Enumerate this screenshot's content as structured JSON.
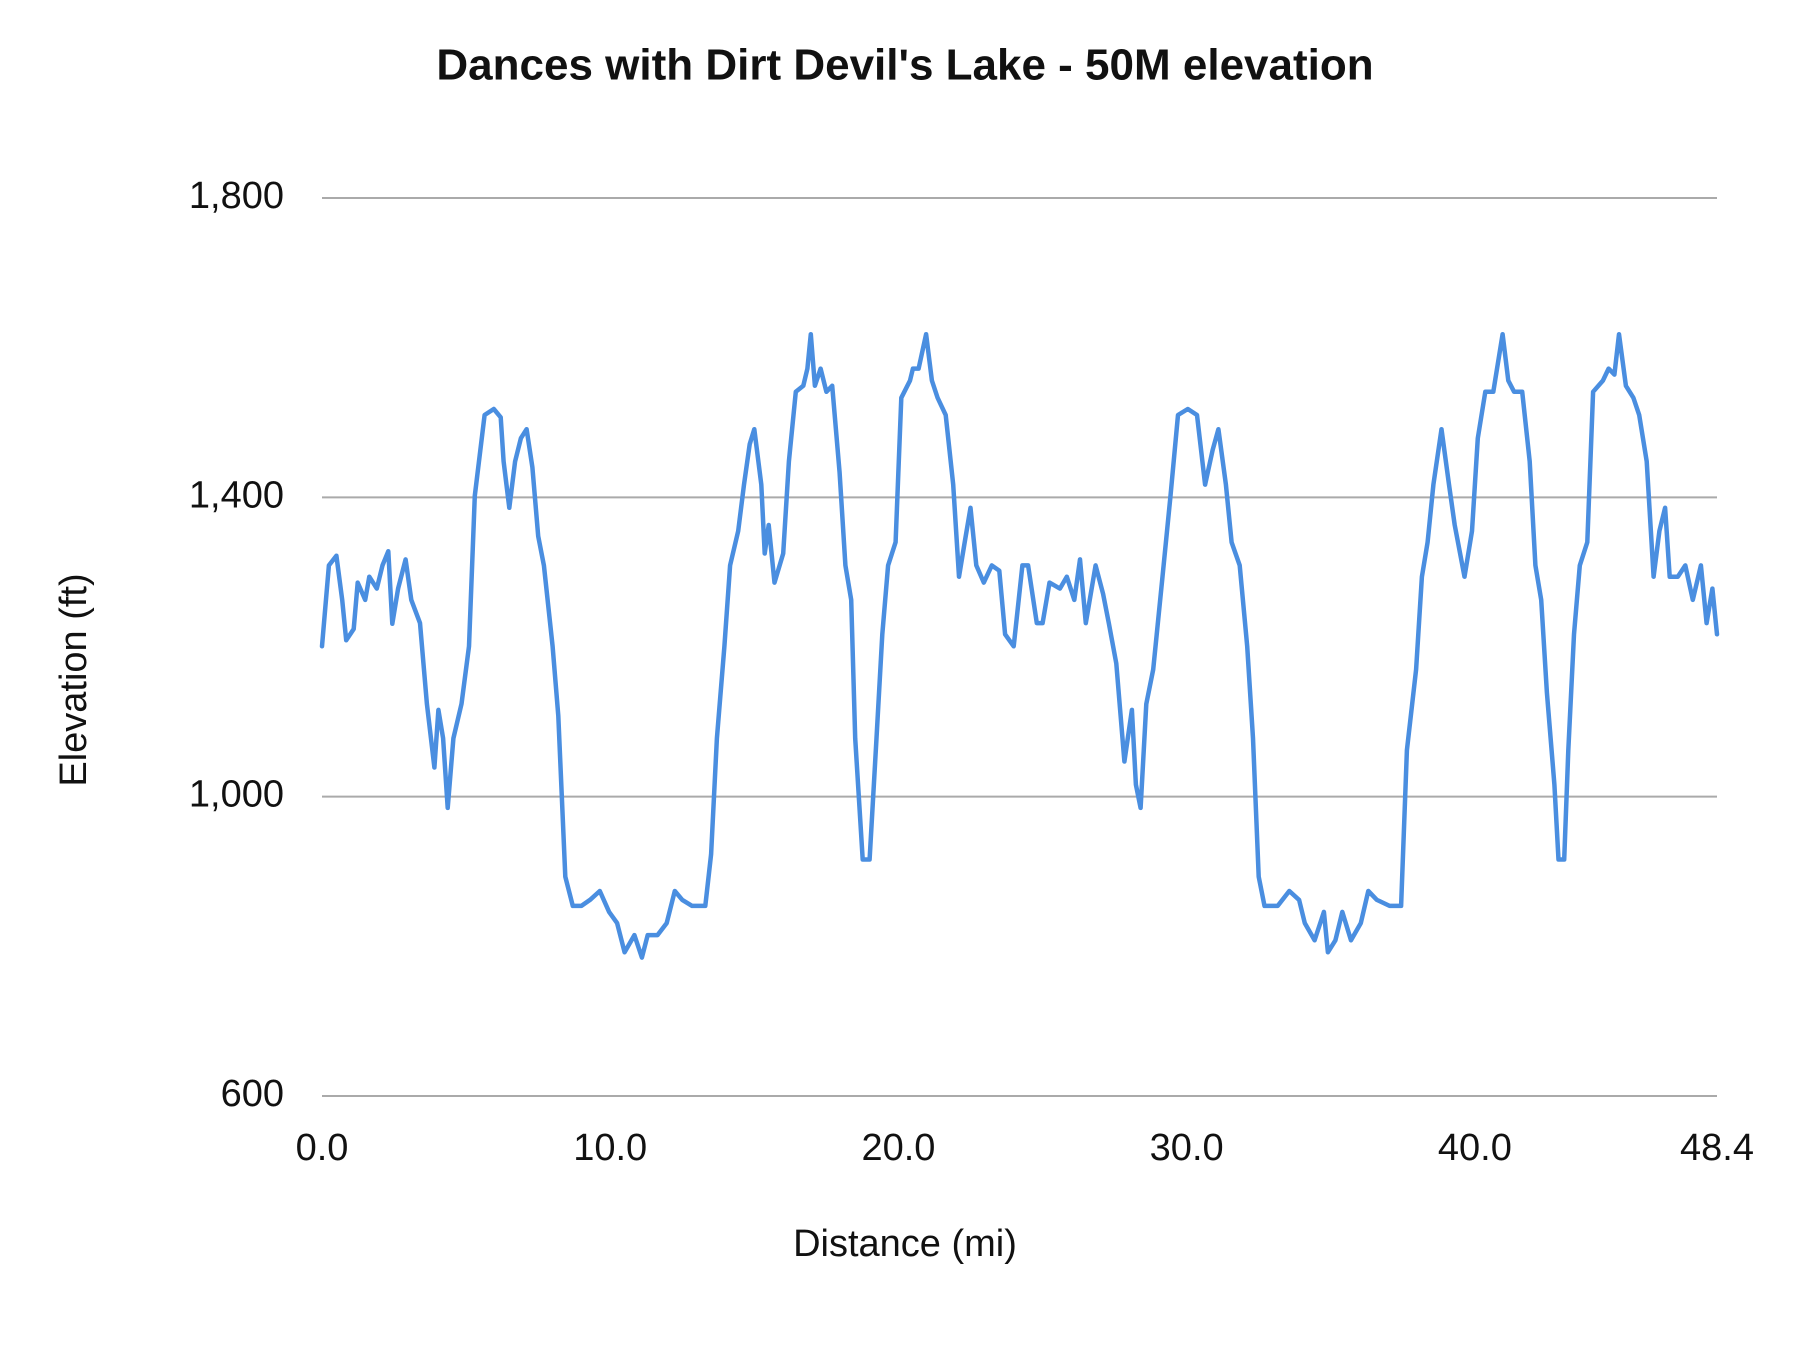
{
  "chart_data": {
    "type": "line",
    "title": "Dances with Dirt Devil's Lake - 50M elevation",
    "x_label": "Distance (mi)",
    "y_label": "Elevation (ft)",
    "xlim": [
      0,
      48.4
    ],
    "xticks": [
      {
        "value": 0,
        "label": "0.0"
      },
      {
        "value": 10,
        "label": "10.0"
      },
      {
        "value": 20,
        "label": "20.0"
      },
      {
        "value": 30,
        "label": "30.0"
      },
      {
        "value": 40,
        "label": "40.0"
      },
      {
        "value": 48.4,
        "label": "48.4"
      }
    ],
    "ylim": [
      600,
      1800
    ],
    "yticks": [
      600,
      {
        "value": 1000,
        "label": "1,000"
      },
      {
        "value": 1400,
        "label": "1,400"
      },
      {
        "value": 1800,
        "label": "1,800"
      }
    ],
    "grid": true,
    "x": [
      0,
      0.24,
      0.5,
      0.7,
      0.84,
      1.1,
      1.24,
      1.5,
      1.64,
      1.9,
      2.1,
      2.3,
      2.44,
      2.64,
      2.9,
      3.1,
      3.4,
      3.64,
      3.9,
      4.04,
      4.2,
      4.36,
      4.56,
      4.84,
      5.1,
      5.3,
      5.64,
      5.96,
      6.2,
      6.3,
      6.5,
      6.7,
      6.9,
      7.1,
      7.3,
      7.5,
      7.7,
      8.0,
      8.2,
      8.44,
      8.7,
      9.0,
      9.3,
      9.64,
      9.96,
      10.24,
      10.5,
      10.84,
      11.1,
      11.3,
      11.64,
      11.96,
      12.24,
      12.5,
      12.84,
      13.3,
      13.5,
      13.7,
      13.96,
      14.16,
      14.44,
      14.64,
      14.84,
      15.0,
      15.24,
      15.36,
      15.5,
      15.7,
      16.0,
      16.2,
      16.44,
      16.7,
      16.84,
      16.96,
      17.1,
      17.3,
      17.5,
      17.7,
      17.96,
      18.16,
      18.36,
      18.5,
      18.76,
      19.0,
      19.24,
      19.44,
      19.64,
      19.9,
      20.1,
      20.4,
      20.5,
      20.7,
      20.96,
      21.16,
      21.36,
      21.64,
      21.9,
      22.1,
      22.3,
      22.5,
      22.7,
      22.96,
      23.24,
      23.5,
      23.7,
      24.0,
      24.3,
      24.5,
      24.8,
      25.0,
      25.24,
      25.6,
      25.84,
      26.1,
      26.3,
      26.5,
      26.84,
      27.1,
      27.3,
      27.56,
      27.84,
      28.1,
      28.24,
      28.4,
      28.6,
      28.84,
      29.16,
      29.44,
      29.7,
      30.04,
      30.36,
      30.64,
      30.9,
      31.1,
      31.36,
      31.56,
      31.84,
      32.1,
      32.3,
      32.5,
      32.7,
      33.16,
      33.56,
      33.9,
      34.1,
      34.44,
      34.76,
      34.9,
      35.16,
      35.4,
      35.7,
      36.04,
      36.3,
      36.6,
      37.04,
      37.44,
      37.64,
      37.96,
      38.16,
      38.36,
      38.56,
      38.84,
      39.1,
      39.3,
      39.64,
      39.9,
      40.1,
      40.36,
      40.64,
      40.96,
      41.16,
      41.36,
      41.64,
      41.9,
      42.1,
      42.3,
      42.5,
      42.76,
      42.9,
      43.1,
      43.24,
      43.44,
      43.64,
      43.9,
      44.1,
      44.44,
      44.64,
      44.84,
      45.0,
      45.24,
      45.5,
      45.7,
      45.96,
      46.2,
      46.4,
      46.6,
      46.76,
      47.04,
      47.3,
      47.56,
      47.84,
      48.04,
      48.24,
      48.4
    ],
    "series": [
      {
        "name": "Elevation",
        "color": "#4a8ee0",
        "values": [
          1201,
          1309,
          1322,
          1263,
          1209,
          1224,
          1286,
          1263,
          1294,
          1278,
          1309,
          1328,
          1231,
          1278,
          1317,
          1263,
          1232,
          1124,
          1039,
          1116,
          1078,
          985,
          1078,
          1124,
          1201,
          1402,
          1510,
          1518,
          1507,
          1448,
          1386,
          1448,
          1479,
          1491,
          1440,
          1348,
          1309,
          1201,
          1108,
          893,
          854,
          854,
          862,
          874,
          846,
          831,
          792,
          815,
          785,
          815,
          815,
          831,
          874,
          862,
          854,
          854,
          923,
          1078,
          1201,
          1309,
          1355,
          1417,
          1471,
          1491,
          1417,
          1325,
          1363,
          1286,
          1325,
          1448,
          1541,
          1549,
          1572,
          1618,
          1549,
          1572,
          1541,
          1549,
          1433,
          1309,
          1263,
          1078,
          916,
          916,
          1078,
          1217,
          1309,
          1340,
          1533,
          1556,
          1572,
          1572,
          1618,
          1556,
          1533,
          1510,
          1417,
          1294,
          1340,
          1386,
          1309,
          1286,
          1309,
          1302,
          1217,
          1201,
          1309,
          1309,
          1232,
          1232,
          1286,
          1278,
          1294,
          1263,
          1317,
          1232,
          1309,
          1271,
          1232,
          1178,
          1047,
          1116,
          1016,
          985,
          1124,
          1170,
          1294,
          1402,
          1510,
          1518,
          1510,
          1417,
          1463,
          1491,
          1417,
          1340,
          1309,
          1201,
          1078,
          893,
          854,
          854,
          874,
          862,
          831,
          808,
          846,
          792,
          808,
          846,
          808,
          831,
          874,
          862,
          854,
          854,
          1062,
          1170,
          1294,
          1340,
          1417,
          1491,
          1417,
          1363,
          1294,
          1355,
          1479,
          1541,
          1541,
          1618,
          1556,
          1541,
          1541,
          1448,
          1309,
          1263,
          1139,
          1016,
          916,
          916,
          1062,
          1217,
          1309,
          1340,
          1541,
          1556,
          1572,
          1564,
          1618,
          1549,
          1533,
          1510,
          1448,
          1294,
          1355,
          1386,
          1294,
          1294,
          1309,
          1263,
          1309,
          1232,
          1278,
          1217
        ]
      }
    ]
  }
}
